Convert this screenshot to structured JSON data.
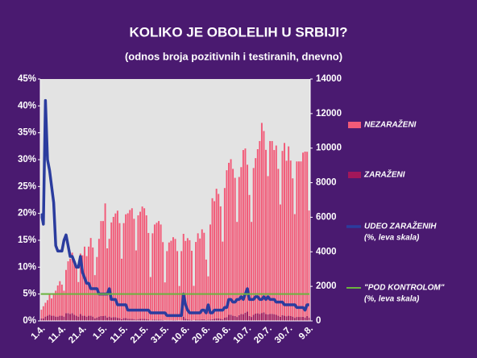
{
  "chart_data": {
    "type": "bar-line",
    "title": "KOLIKO JE OBOLELIH U SRBIJI?",
    "subtitle": "(odnos broja pozitivnih i testiranih, dnevno)",
    "categories": [
      "1.4.",
      null,
      null,
      null,
      null,
      null,
      null,
      null,
      null,
      null,
      "11.4.",
      null,
      null,
      null,
      null,
      null,
      null,
      null,
      null,
      null,
      "21.4.",
      null,
      null,
      null,
      null,
      null,
      null,
      null,
      null,
      null,
      "1.5.",
      null,
      null,
      null,
      null,
      null,
      null,
      null,
      null,
      null,
      "11.5.",
      null,
      null,
      null,
      null,
      null,
      null,
      null,
      null,
      null,
      "21.5.",
      null,
      null,
      null,
      null,
      null,
      null,
      null,
      null,
      null,
      "31.5.",
      null,
      null,
      null,
      null,
      null,
      null,
      null,
      null,
      null,
      "10.6.",
      null,
      null,
      null,
      null,
      null,
      null,
      null,
      null,
      null,
      "20.6.",
      null,
      null,
      null,
      null,
      null,
      null,
      null,
      null,
      null,
      "30.6.",
      null,
      null,
      null,
      null,
      null,
      null,
      null,
      null,
      null,
      "10.7.",
      null,
      null,
      null,
      null,
      null,
      null,
      null,
      null,
      null,
      "20.7.",
      null,
      null,
      null,
      null,
      null,
      null,
      null,
      null,
      null,
      "30.7.",
      null,
      null,
      null,
      null,
      null,
      null,
      null,
      null,
      null,
      "9.8."
    ],
    "series": [
      {
        "name": "ZARAŽENI",
        "color": "#a3175a",
        "axis": "y2",
        "kind": "bar",
        "values": [
          150,
          150,
          250,
          300,
          350,
          300,
          300,
          250,
          250,
          300,
          300,
          250,
          450,
          450,
          400,
          450,
          350,
          300,
          250,
          400,
          300,
          300,
          250,
          300,
          300,
          250,
          150,
          200,
          250,
          280,
          280,
          300,
          200,
          250,
          200,
          220,
          220,
          180,
          160,
          100,
          160,
          170,
          130,
          120,
          120,
          110,
          80,
          110,
          120,
          120,
          120,
          110,
          90,
          40,
          70,
          80,
          80,
          80,
          80,
          60,
          30,
          40,
          40,
          40,
          45,
          45,
          40,
          20,
          40,
          240,
          130,
          90,
          70,
          60,
          30,
          70,
          70,
          70,
          100,
          100,
          50,
          80,
          80,
          100,
          130,
          150,
          150,
          130,
          90,
          190,
          220,
          350,
          360,
          300,
          280,
          230,
          330,
          400,
          390,
          480,
          540,
          290,
          230,
          350,
          420,
          440,
          410,
          460,
          490,
          400,
          380,
          410,
          410,
          390,
          350,
          300,
          240,
          340,
          300,
          270,
          300,
          280,
          250,
          180,
          230,
          230,
          230,
          240,
          200,
          290,
          190
        ]
      },
      {
        "name": "NEZARAŽENI",
        "color": "#f25a78",
        "axis": "y2",
        "kind": "bar",
        "values": [
          500,
          700,
          800,
          900,
          1200,
          1000,
          1300,
          1500,
          1800,
          2000,
          1800,
          1500,
          2500,
          3000,
          3200,
          3500,
          3000,
          2800,
          2000,
          3500,
          3500,
          4000,
          3500,
          4000,
          4500,
          4000,
          2500,
          3500,
          4500,
          5500,
          5500,
          6500,
          4000,
          4500,
          5500,
          5800,
          6000,
          6200,
          5500,
          3500,
          5500,
          6000,
          6100,
          6300,
          6400,
          5800,
          4000,
          6000,
          6200,
          6500,
          6400,
          6000,
          5000,
          2500,
          5000,
          5500,
          5600,
          5700,
          5500,
          4500,
          2200,
          4000,
          4500,
          4600,
          4800,
          4700,
          4000,
          2000,
          4000,
          4800,
          4500,
          4700,
          4600,
          4000,
          2000,
          4500,
          5000,
          4700,
          5200,
          5000,
          3500,
          2500,
          5500,
          7000,
          6800,
          7500,
          7200,
          6500,
          4500,
          7500,
          8500,
          8800,
          9000,
          8500,
          8000,
          5500,
          8000,
          8500,
          9500,
          9500,
          8500,
          7000,
          5500,
          8500,
          9000,
          9500,
          10000,
          11000,
          10500,
          9500,
          8000,
          10000,
          10000,
          9500,
          9800,
          8500,
          6500,
          9500,
          10000,
          9000,
          9800,
          9000,
          8000,
          6000,
          9000,
          9000,
          9000,
          9500,
          9600,
          9500,
          6200
        ]
      },
      {
        "name": "UDEO ZARAŽENIH",
        "note": "(%, leva skala)",
        "color": "#2b3c9e",
        "kind": "line",
        "values": [
          20,
          18,
          41,
          30,
          28,
          25,
          22,
          14,
          13,
          13,
          13,
          15,
          16,
          14,
          12,
          12,
          11,
          10,
          10,
          12,
          9,
          8,
          7,
          7,
          6,
          6,
          6,
          6,
          5,
          5,
          5,
          5,
          5,
          6,
          4,
          4,
          4,
          3,
          3,
          3,
          3,
          3,
          2,
          2,
          2,
          2,
          2,
          2,
          2,
          2,
          2,
          2,
          2,
          1.5,
          1.5,
          1.5,
          1.5,
          1.5,
          1.5,
          1.5,
          1.5,
          1,
          1,
          1,
          1,
          1,
          1,
          1,
          1,
          5,
          3,
          2,
          1.5,
          1.5,
          1.5,
          1.5,
          1.5,
          1.5,
          2,
          2,
          1.5,
          3,
          1.5,
          1.5,
          2,
          2,
          2,
          2,
          2,
          2.5,
          2.5,
          4,
          4,
          3.5,
          3.5,
          4,
          4,
          4.5,
          4,
          5,
          6,
          4,
          4,
          4,
          4.5,
          4.5,
          4,
          4,
          4.5,
          4,
          4.5,
          4,
          4,
          4,
          3.5,
          3.5,
          3.5,
          3.5,
          3,
          3,
          3,
          3,
          3,
          3,
          2.5,
          2.5,
          2.5,
          2.5,
          2,
          3,
          3
        ]
      },
      {
        "name": "\"POD KONTROLOM\"",
        "note": "(%, leva skala)",
        "color": "#6cb33f",
        "kind": "threshold",
        "value": 5
      }
    ],
    "ylim": [
      0,
      45
    ],
    "yticks": [
      {
        "value": 0,
        "label": "0%"
      },
      {
        "value": 5,
        "label": "5%"
      },
      {
        "value": 10,
        "label": "10%"
      },
      {
        "value": 15,
        "label": "15%"
      },
      {
        "value": 20,
        "label": "20%"
      },
      {
        "value": 25,
        "label": "25%"
      },
      {
        "value": 30,
        "label": "30%"
      },
      {
        "value": 35,
        "label": "35%"
      },
      {
        "value": 40,
        "label": "40%"
      },
      {
        "value": 45,
        "label": "45%"
      }
    ],
    "y2lim": [
      0,
      14000
    ],
    "y2ticks": [
      0,
      2000,
      4000,
      6000,
      8000,
      10000,
      12000,
      14000
    ],
    "legend": "right"
  }
}
